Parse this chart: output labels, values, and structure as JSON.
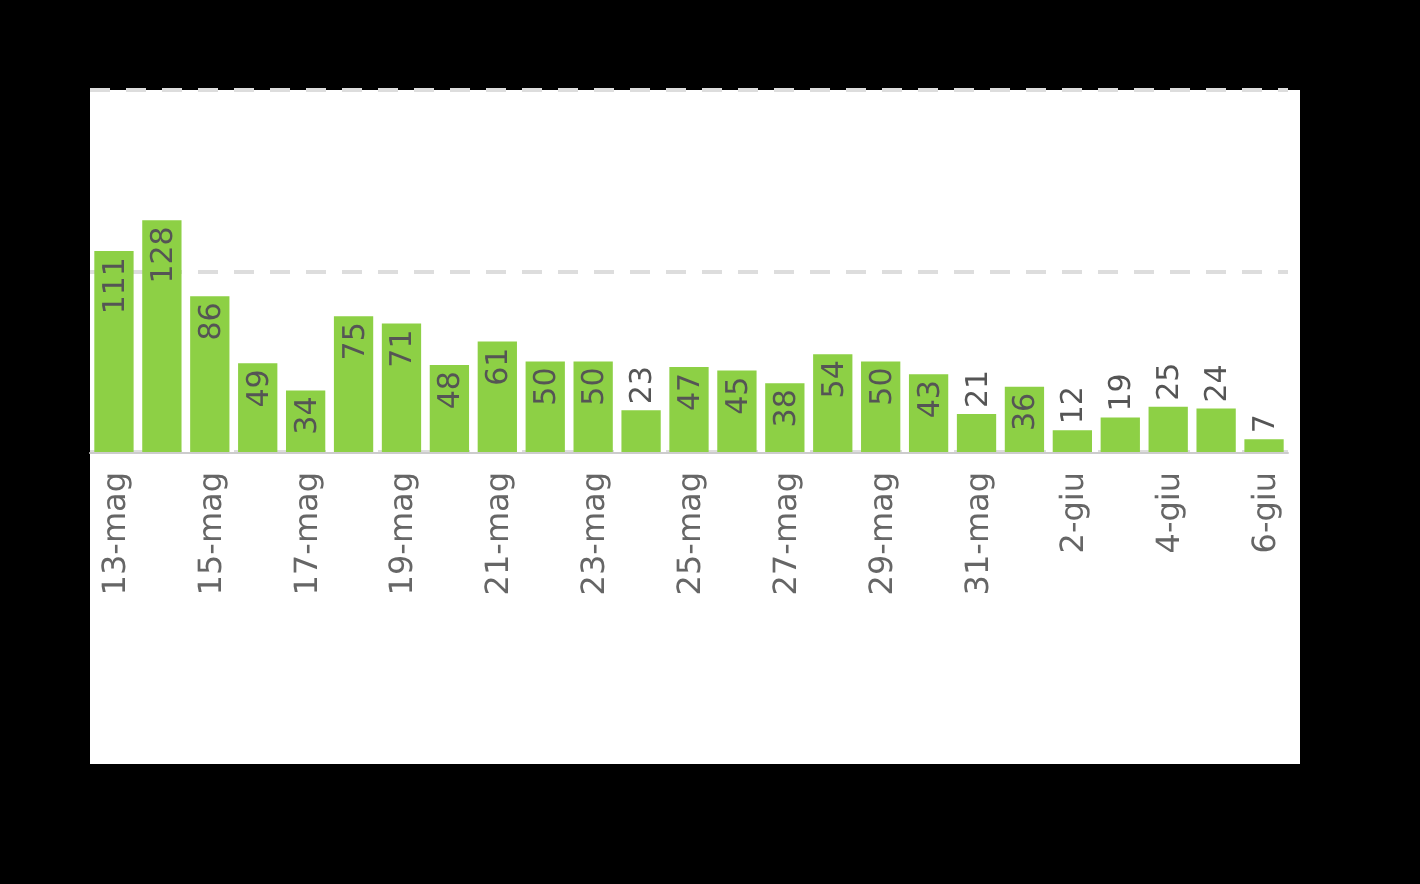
{
  "chart_data": {
    "type": "bar",
    "categories": [
      "13-mag",
      null,
      "15-mag",
      null,
      "17-mag",
      null,
      "19-mag",
      null,
      "21-mag",
      null,
      "23-mag",
      null,
      "25-mag",
      null,
      "27-mag",
      null,
      "29-mag",
      null,
      "31-mag",
      null,
      "2-giu",
      null,
      "4-giu",
      null,
      "6-giu"
    ],
    "values": [
      111,
      128,
      86,
      49,
      34,
      75,
      71,
      48,
      61,
      50,
      50,
      23,
      47,
      45,
      38,
      54,
      50,
      43,
      21,
      36,
      12,
      19,
      25,
      24,
      7
    ],
    "color": "#8dd045",
    "ylim": [
      0,
      200
    ],
    "yticks": [
      {
        "value": 0,
        "label": null
      },
      {
        "value": 100,
        "label": null
      },
      {
        "value": 200,
        "label": null
      }
    ],
    "grid": "y",
    "tick_labels": "x",
    "data_labels": true
  }
}
